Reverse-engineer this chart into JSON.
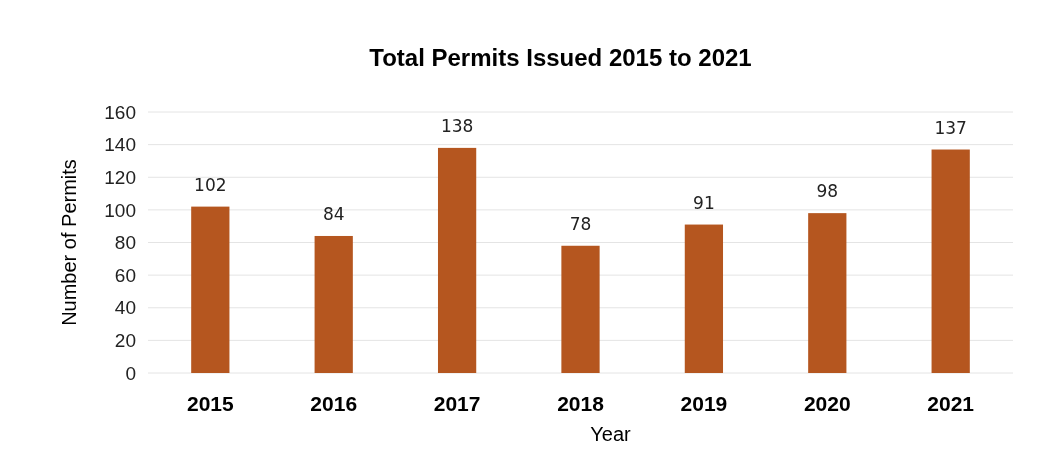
{
  "chart_data": {
    "type": "bar",
    "title": "Total Permits Issued 2015 to 2021",
    "xlabel": "Year",
    "ylabel": "Number of Permits",
    "categories": [
      "2015",
      "2016",
      "2017",
      "2018",
      "2019",
      "2020",
      "2021"
    ],
    "values": [
      102,
      84,
      138,
      78,
      91,
      98,
      137
    ],
    "color": "#b5561f",
    "ylim": [
      0,
      160
    ],
    "yticks": [
      0,
      20,
      40,
      60,
      80,
      100,
      120,
      140,
      160
    ],
    "grid": "y",
    "data_labels": true
  }
}
